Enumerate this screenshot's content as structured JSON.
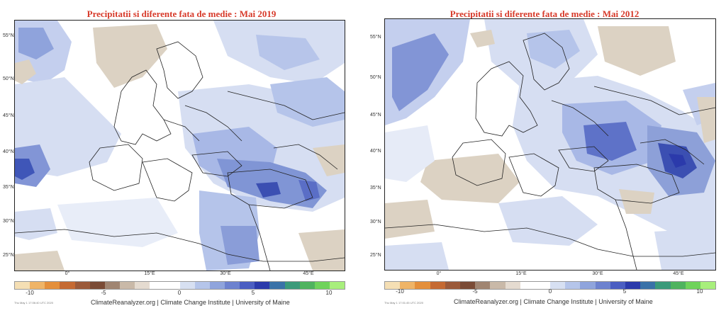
{
  "panels": [
    {
      "title": "Precipitatii si diferente fata de medie : Mai 2019",
      "timestamp": "Thu May 1 17:06:40 UTC 2020"
    },
    {
      "title": "Precipitatii si diferente fata de medie : Mai 2012",
      "timestamp": "Thu May 1 17:01:45 UTC 2020"
    }
  ],
  "lat_labels": [
    "55°N",
    "50°N",
    "45°N",
    "40°N",
    "35°N",
    "30°N",
    "25°N"
  ],
  "lon_labels": [
    "0°",
    "15°E",
    "30°E",
    "45°E"
  ],
  "colorbar": {
    "ticks": [
      "-10",
      "-5",
      "0",
      "5",
      "10"
    ],
    "colors": [
      "#f5dfb4",
      "#efb467",
      "#e48f3b",
      "#c56a33",
      "#9b5a3a",
      "#7a4b36",
      "#a08572",
      "#c9b9a8",
      "#e5dbd0",
      "#ffffff",
      "#ffffff",
      "#d7e0f2",
      "#b5c5ea",
      "#8fa4dc",
      "#6d82cf",
      "#4b5ec2",
      "#2b3aab",
      "#3a72a8",
      "#3b9a7a",
      "#4fb35e",
      "#6fd35a",
      "#a8ef7c"
    ]
  },
  "credit": "ClimateReanalyzer.org | Climate Change Institute | University of Maine",
  "colors": {
    "title": "#d73a2a",
    "land_dry": "#dcd2c3",
    "light_wet": "#d6def2",
    "mid_wet": "#a8b8e6",
    "wet": "#6c7fcc",
    "very_wet": "#3b4fb2"
  }
}
